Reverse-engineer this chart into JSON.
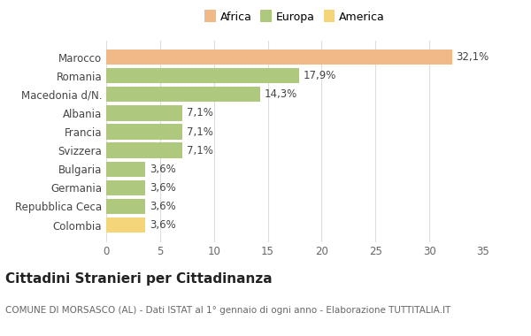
{
  "categories": [
    "Colombia",
    "Repubblica Ceca",
    "Germania",
    "Bulgaria",
    "Svizzera",
    "Francia",
    "Albania",
    "Macedonia d/N.",
    "Romania",
    "Marocco"
  ],
  "values": [
    3.6,
    3.6,
    3.6,
    3.6,
    7.1,
    7.1,
    7.1,
    14.3,
    17.9,
    32.1
  ],
  "labels": [
    "3,6%",
    "3,6%",
    "3,6%",
    "3,6%",
    "7,1%",
    "7,1%",
    "7,1%",
    "14,3%",
    "17,9%",
    "32,1%"
  ],
  "colors": [
    "#f5d57a",
    "#aec97e",
    "#aec97e",
    "#aec97e",
    "#aec97e",
    "#aec97e",
    "#aec97e",
    "#aec97e",
    "#aec97e",
    "#f0b987"
  ],
  "legend_labels": [
    "Africa",
    "Europa",
    "America"
  ],
  "legend_colors": [
    "#f0b987",
    "#aec97e",
    "#f5d57a"
  ],
  "title": "Cittadini Stranieri per Cittadinanza",
  "subtitle": "COMUNE DI MORSASCO (AL) - Dati ISTAT al 1° gennaio di ogni anno - Elaborazione TUTTITALIA.IT",
  "xlim": [
    0,
    35
  ],
  "xticks": [
    0,
    5,
    10,
    15,
    20,
    25,
    30,
    35
  ],
  "background_color": "#ffffff",
  "grid_color": "#dddddd",
  "bar_height": 0.82,
  "title_fontsize": 11,
  "subtitle_fontsize": 7.5,
  "label_fontsize": 8.5,
  "ytick_fontsize": 8.5,
  "xtick_fontsize": 8.5,
  "legend_fontsize": 9
}
